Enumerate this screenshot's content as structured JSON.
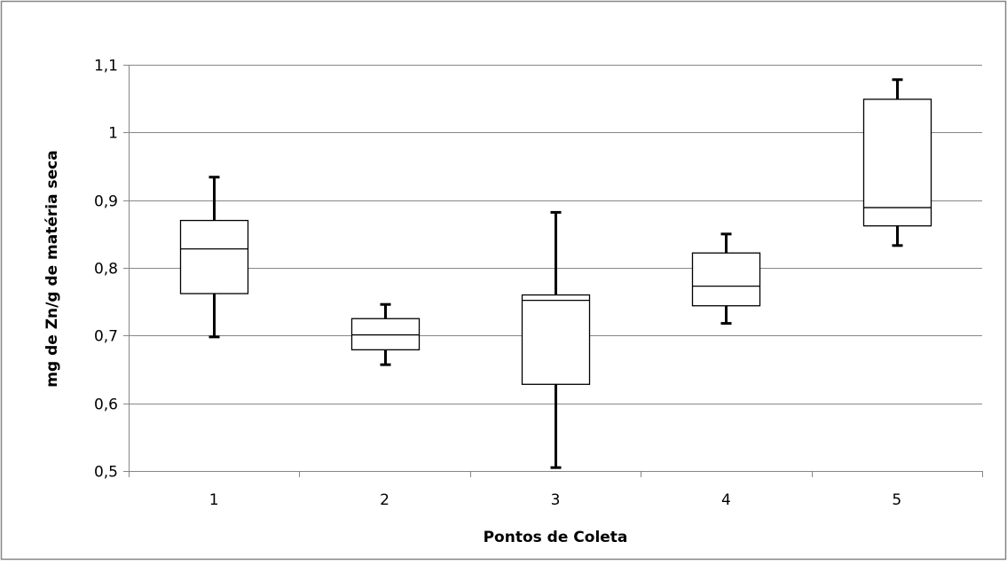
{
  "chart_data": {
    "type": "boxplot",
    "xlabel": "Pontos de Coleta",
    "ylabel": "mg de Zn/g de matéria seca",
    "ylim": [
      0.5,
      1.1
    ],
    "y_ticks": [
      0.5,
      0.6,
      0.7,
      0.8,
      0.9,
      1.0,
      1.1
    ],
    "y_tick_labels": [
      "0,5",
      "0,6",
      "0,7",
      "0,8",
      "0,9",
      "1",
      "1,1"
    ],
    "grid": true,
    "legend": "none",
    "categories": [
      "1",
      "2",
      "3",
      "4",
      "5"
    ],
    "boxes": [
      {
        "category": "1",
        "min": 0.698,
        "q1": 0.762,
        "median": 0.828,
        "q3": 0.87,
        "max": 0.934
      },
      {
        "category": "2",
        "min": 0.657,
        "q1": 0.679,
        "median": 0.701,
        "q3": 0.725,
        "max": 0.746
      },
      {
        "category": "3",
        "min": 0.505,
        "q1": 0.628,
        "median": 0.752,
        "q3": 0.76,
        "max": 0.882
      },
      {
        "category": "4",
        "min": 0.718,
        "q1": 0.744,
        "median": 0.773,
        "q3": 0.822,
        "max": 0.85
      },
      {
        "category": "5",
        "min": 0.833,
        "q1": 0.862,
        "median": 0.889,
        "q3": 1.049,
        "max": 1.078
      }
    ]
  }
}
